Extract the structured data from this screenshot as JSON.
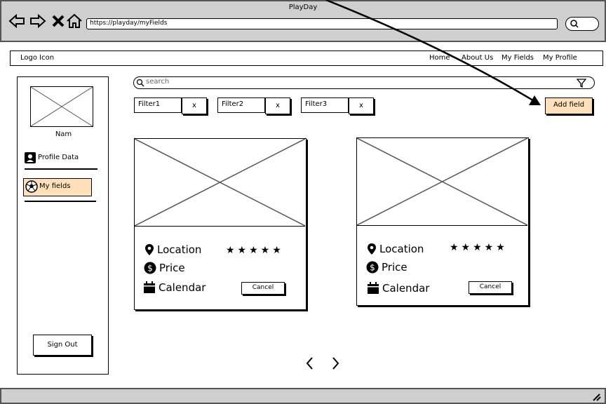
{
  "window": {
    "title": "PlayDay"
  },
  "browser": {
    "url": "https://playday/myFields"
  },
  "header": {
    "logo": "Logo Icon",
    "nav": [
      "Home",
      "About Us",
      "My Fields",
      "My Profile"
    ]
  },
  "sidebar": {
    "user_name": "Nam",
    "items": [
      {
        "label": "Profile Data",
        "icon": "user-icon"
      },
      {
        "label": "My fields",
        "icon": "soccer-ball-icon",
        "active": true
      }
    ],
    "sign_out": "Sign Out"
  },
  "search": {
    "placeholder": "search"
  },
  "filters": [
    {
      "label": "Filter1",
      "remove": "x"
    },
    {
      "label": "Filter2",
      "remove": "x"
    },
    {
      "label": "Filter3",
      "remove": "x"
    }
  ],
  "add_field_label": "Add field",
  "cards": [
    {
      "location": "Location",
      "price": "Price",
      "calendar": "Calendar",
      "rating": 5,
      "stars": "★★★★★",
      "cancel": "Cancel"
    },
    {
      "location": "Location",
      "price": "Price",
      "calendar": "Calendar",
      "rating": 5,
      "stars": "★★★★★",
      "cancel": "Cancel"
    }
  ],
  "colors": {
    "accent": "#ffe0b8",
    "chrome": "#cfcfcf"
  }
}
